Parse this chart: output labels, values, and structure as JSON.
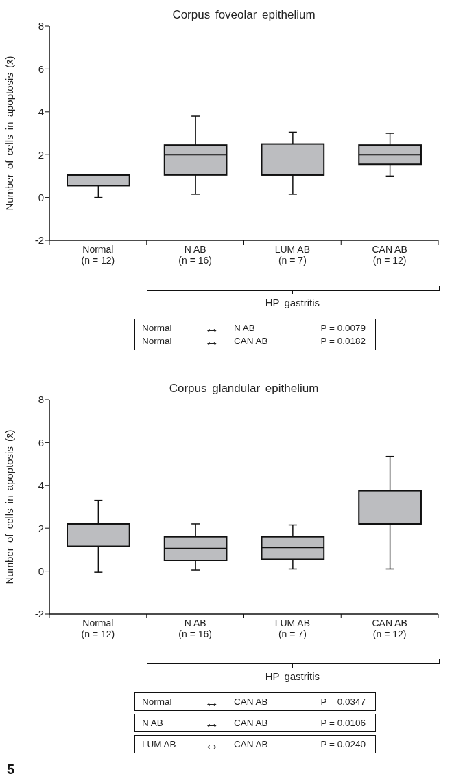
{
  "chart_data": [
    {
      "type": "box",
      "title": "Corpus foveolar epithelium",
      "ylabel": "Number of cells in apoptosis (x̄)",
      "categories": [
        "Normal\n(n = 12)",
        "N AB\n(n = 16)",
        "LUM AB\n(n = 7)",
        "CAN AB\n(n = 12)"
      ],
      "color": "#bcbdc0",
      "ylim": [
        -2,
        8
      ],
      "yticks": [
        -2,
        0,
        2,
        4,
        6,
        8
      ],
      "grid": false,
      "boxes": [
        {
          "low": 0,
          "q1": 0.55,
          "median": 1.05,
          "q3": 1.05,
          "high": 1.05
        },
        {
          "low": 0.15,
          "q1": 1.05,
          "median": 2,
          "q3": 2.45,
          "high": 3.8
        },
        {
          "low": 0.15,
          "q1": 1.05,
          "median": 1.05,
          "q3": 2.5,
          "high": 3.05
        },
        {
          "low": 1,
          "q1": 1.55,
          "median": 2,
          "q3": 2.45,
          "high": 3
        }
      ],
      "annotations": [
        "HP gastritis",
        "Normal\t↔\tN AB\tP = 0.0079\nNormal\t↔\tCAN AB\tP = 0.0182"
      ]
    },
    {
      "type": "box",
      "title": "Corpus glandular epithelium",
      "ylabel": "Number of cells in apoptosis (x̄)",
      "categories": [
        "Normal\n(n = 12)",
        "N AB\n(n = 16)",
        "LUM AB\n(n = 7)",
        "CAN AB\n(n = 12)"
      ],
      "color": "#bcbdc0",
      "ylim": [
        -2,
        8
      ],
      "yticks": [
        -2,
        0,
        2,
        4,
        6,
        8
      ],
      "grid": false,
      "boxes": [
        {
          "low": -0.05,
          "q1": 1.15,
          "median": 1.15,
          "q3": 2.2,
          "high": 3.3
        },
        {
          "low": 0.05,
          "q1": 0.5,
          "median": 1.05,
          "q3": 1.6,
          "high": 2.2
        },
        {
          "low": 0.1,
          "q1": 0.55,
          "median": 1.1,
          "q3": 1.6,
          "high": 2.15
        },
        {
          "low": 0.1,
          "q1": 2.2,
          "median": 2.2,
          "q3": 3.75,
          "high": 5.35
        }
      ],
      "annotations": [
        "HP gastritis",
        "Normal\t↔\tCAN AB\tP = 0.0347",
        "N AB\t↔\tCAN AB\tP = 0.0106",
        "LUM AB\t↔\tCAN AB\tP = 0.0240",
        "5"
      ]
    }
  ]
}
